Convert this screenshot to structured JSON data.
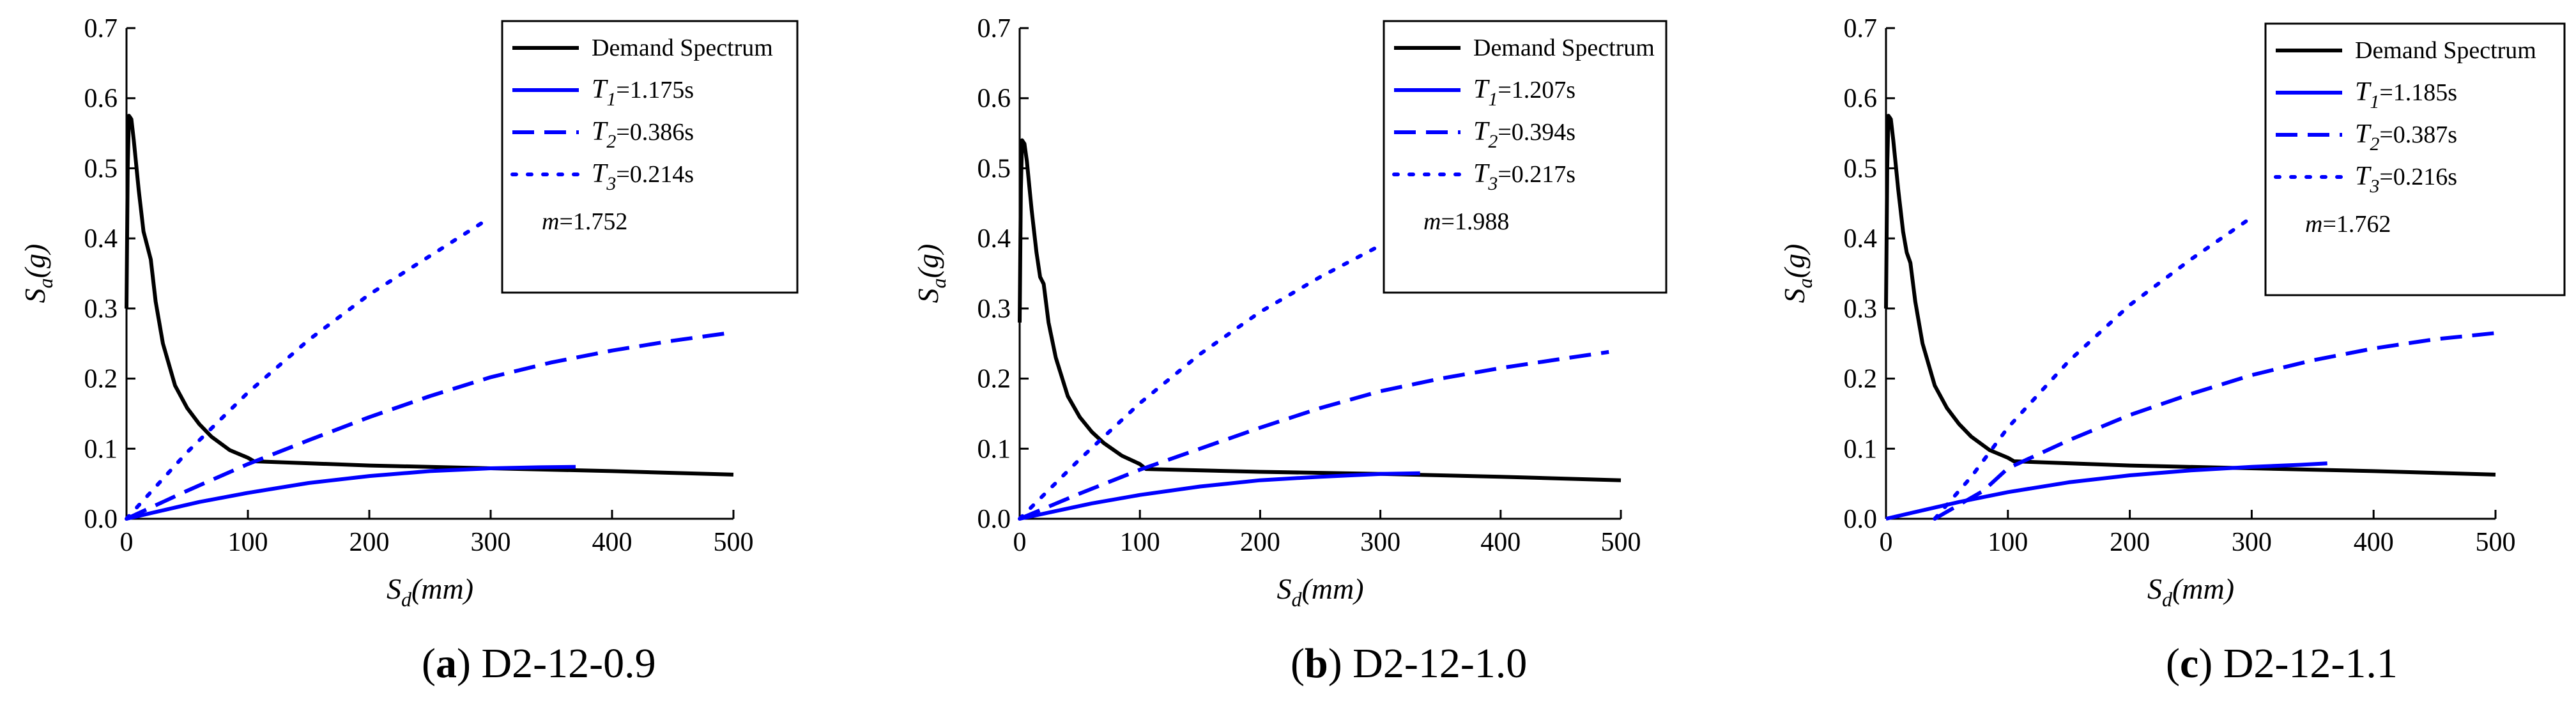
{
  "chart_data": [
    {
      "type": "line",
      "panel_label": "a",
      "caption": "D2-12-0.9",
      "xlabel_main": "S",
      "xlabel_sub": "d",
      "xlabel_unit": "(mm)",
      "ylabel_main": "S",
      "ylabel_sub": "a",
      "ylabel_unit": "(g)",
      "xlim": [
        0,
        500
      ],
      "ylim": [
        0,
        0.7
      ],
      "xticks": [
        "0",
        "100",
        "200",
        "300",
        "400",
        "500"
      ],
      "yticks": [
        "0.0",
        "0.1",
        "0.2",
        "0.3",
        "0.4",
        "0.5",
        "0.6",
        "0.7"
      ],
      "legend_position": "top-right",
      "legend": [
        {
          "label": "Demand Spectrum"
        },
        {
          "label_main": "T",
          "label_sub": "1",
          "label_value": "=1.175s"
        },
        {
          "label_main": "T",
          "label_sub": "2",
          "label_value": "=0.386s"
        },
        {
          "label_main": "T",
          "label_sub": "3",
          "label_value": "=0.214s"
        }
      ],
      "annotation": {
        "main": "m",
        "value": "=1.752"
      },
      "series": [
        {
          "name": "Demand Spectrum",
          "style": "solid",
          "color": "#000000",
          "points": [
            [
              0,
              0.3
            ],
            [
              1,
              0.5
            ],
            [
              2,
              0.575
            ],
            [
              4,
              0.57
            ],
            [
              6,
              0.54
            ],
            [
              10,
              0.47
            ],
            [
              14,
              0.41
            ],
            [
              17,
              0.39
            ],
            [
              20,
              0.37
            ],
            [
              24,
              0.31
            ],
            [
              30,
              0.25
            ],
            [
              40,
              0.19
            ],
            [
              50,
              0.158
            ],
            [
              60,
              0.135
            ],
            [
              70,
              0.117
            ],
            [
              85,
              0.098
            ],
            [
              100,
              0.087
            ],
            [
              105,
              0.082
            ],
            [
              200,
              0.076
            ],
            [
              300,
              0.072
            ],
            [
              400,
              0.068
            ],
            [
              500,
              0.063
            ]
          ]
        },
        {
          "name": "T1=1.175s",
          "style": "solid",
          "color": "#0000ff",
          "points": [
            [
              0,
              0.0
            ],
            [
              30,
              0.012
            ],
            [
              60,
              0.024
            ],
            [
              100,
              0.037
            ],
            [
              150,
              0.051
            ],
            [
              200,
              0.061
            ],
            [
              250,
              0.068
            ],
            [
              300,
              0.072
            ],
            [
              340,
              0.0735
            ],
            [
              370,
              0.074
            ]
          ]
        },
        {
          "name": "T2=0.386s",
          "style": "dashed",
          "color": "#0000ff",
          "points": [
            [
              0,
              0.0
            ],
            [
              50,
              0.04
            ],
            [
              100,
              0.078
            ],
            [
              150,
              0.112
            ],
            [
              200,
              0.145
            ],
            [
              250,
              0.175
            ],
            [
              300,
              0.202
            ],
            [
              350,
              0.223
            ],
            [
              400,
              0.24
            ],
            [
              450,
              0.254
            ],
            [
              500,
              0.266
            ]
          ]
        },
        {
          "name": "T3=0.214s",
          "style": "dotted",
          "color": "#0000ff",
          "points": [
            [
              0,
              0.0
            ],
            [
              50,
              0.095
            ],
            [
              100,
              0.18
            ],
            [
              150,
              0.255
            ],
            [
              200,
              0.32
            ],
            [
              250,
              0.375
            ],
            [
              300,
              0.43
            ]
          ]
        }
      ]
    },
    {
      "type": "line",
      "panel_label": "b",
      "caption": "D2-12-1.0",
      "xlabel_main": "S",
      "xlabel_sub": "d",
      "xlabel_unit": "(mm)",
      "ylabel_main": "S",
      "ylabel_sub": "a",
      "ylabel_unit": "(g)",
      "xlim": [
        0,
        500
      ],
      "ylim": [
        0,
        0.7
      ],
      "xticks": [
        "0",
        "100",
        "200",
        "300",
        "400",
        "500"
      ],
      "yticks": [
        "0.0",
        "0.1",
        "0.2",
        "0.3",
        "0.4",
        "0.5",
        "0.6",
        "0.7"
      ],
      "legend_position": "top-right",
      "legend": [
        {
          "label": "Demand Spectrum"
        },
        {
          "label_main": "T",
          "label_sub": "1",
          "label_value": "=1.207s"
        },
        {
          "label_main": "T",
          "label_sub": "2",
          "label_value": "=0.394s"
        },
        {
          "label_main": "T",
          "label_sub": "3",
          "label_value": "=0.217s"
        }
      ],
      "annotation": {
        "main": "m",
        "value": "=1.988"
      },
      "series": [
        {
          "name": "Demand Spectrum",
          "style": "solid",
          "color": "#000000",
          "points": [
            [
              0,
              0.28
            ],
            [
              1,
              0.47
            ],
            [
              2,
              0.54
            ],
            [
              4,
              0.535
            ],
            [
              6,
              0.51
            ],
            [
              10,
              0.44
            ],
            [
              14,
              0.38
            ],
            [
              17,
              0.345
            ],
            [
              20,
              0.335
            ],
            [
              24,
              0.28
            ],
            [
              30,
              0.23
            ],
            [
              40,
              0.175
            ],
            [
              50,
              0.145
            ],
            [
              60,
              0.124
            ],
            [
              70,
              0.108
            ],
            [
              85,
              0.09
            ],
            [
              100,
              0.078
            ],
            [
              105,
              0.071
            ],
            [
              200,
              0.067
            ],
            [
              300,
              0.064
            ],
            [
              400,
              0.06
            ],
            [
              500,
              0.055
            ]
          ]
        },
        {
          "name": "T1=1.207s",
          "style": "solid",
          "color": "#0000ff",
          "points": [
            [
              0,
              0.0
            ],
            [
              30,
              0.011
            ],
            [
              60,
              0.022
            ],
            [
              100,
              0.034
            ],
            [
              150,
              0.046
            ],
            [
              200,
              0.055
            ],
            [
              250,
              0.06
            ],
            [
              300,
              0.064
            ],
            [
              333,
              0.065
            ]
          ]
        },
        {
          "name": "T2=0.394s",
          "style": "dashed",
          "color": "#0000ff",
          "points": [
            [
              0,
              0.0
            ],
            [
              50,
              0.036
            ],
            [
              100,
              0.07
            ],
            [
              150,
              0.1
            ],
            [
              200,
              0.13
            ],
            [
              250,
              0.158
            ],
            [
              300,
              0.182
            ],
            [
              350,
              0.2
            ],
            [
              400,
              0.215
            ],
            [
              450,
              0.228
            ],
            [
              490,
              0.238
            ]
          ]
        },
        {
          "name": "T3=0.217s",
          "style": "dotted",
          "color": "#0000ff",
          "points": [
            [
              0,
              0.0
            ],
            [
              50,
              0.085
            ],
            [
              100,
              0.165
            ],
            [
              150,
              0.235
            ],
            [
              200,
              0.295
            ],
            [
              250,
              0.345
            ],
            [
              300,
              0.39
            ]
          ]
        }
      ]
    },
    {
      "type": "line",
      "panel_label": "c",
      "caption": "D2-12-1.1",
      "xlabel_main": "S",
      "xlabel_sub": "d",
      "xlabel_unit": "(mm)",
      "ylabel_main": "S",
      "ylabel_sub": "a",
      "ylabel_unit": "(g)",
      "xlim": [
        0,
        500
      ],
      "ylim": [
        0,
        0.7
      ],
      "xticks": [
        "0",
        "100",
        "200",
        "300",
        "400",
        "500"
      ],
      "yticks": [
        "0.0",
        "0.1",
        "0.2",
        "0.3",
        "0.4",
        "0.5",
        "0.6",
        "0.7"
      ],
      "legend_position": "top-right",
      "legend": [
        {
          "label": "Demand Spectrum"
        },
        {
          "label_main": "T",
          "label_sub": "1",
          "label_value": "=1.185s"
        },
        {
          "label_main": "T",
          "label_sub": "2",
          "label_value": "=0.387s"
        },
        {
          "label_main": "T",
          "label_sub": "3",
          "label_value": "=0.216s"
        }
      ],
      "annotation": {
        "main": "m",
        "value": "=1.762"
      },
      "series": [
        {
          "name": "Demand Spectrum",
          "style": "solid",
          "color": "#000000",
          "points": [
            [
              0,
              0.3
            ],
            [
              1,
              0.5
            ],
            [
              2,
              0.575
            ],
            [
              4,
              0.57
            ],
            [
              6,
              0.54
            ],
            [
              10,
              0.47
            ],
            [
              14,
              0.41
            ],
            [
              17,
              0.38
            ],
            [
              20,
              0.365
            ],
            [
              24,
              0.31
            ],
            [
              30,
              0.25
            ],
            [
              40,
              0.19
            ],
            [
              50,
              0.158
            ],
            [
              60,
              0.135
            ],
            [
              70,
              0.117
            ],
            [
              85,
              0.098
            ],
            [
              100,
              0.087
            ],
            [
              105,
              0.082
            ],
            [
              200,
              0.076
            ],
            [
              300,
              0.072
            ],
            [
              400,
              0.068
            ],
            [
              500,
              0.063
            ]
          ]
        },
        {
          "name": "T1=1.185s",
          "style": "solid",
          "color": "#0000ff",
          "points": [
            [
              0,
              0.0
            ],
            [
              30,
              0.012
            ],
            [
              60,
              0.024
            ],
            [
              100,
              0.038
            ],
            [
              150,
              0.052
            ],
            [
              200,
              0.062
            ],
            [
              250,
              0.069
            ],
            [
              300,
              0.074
            ],
            [
              340,
              0.077
            ],
            [
              362,
              0.079
            ]
          ]
        },
        {
          "name": "T2=0.387s",
          "style": "dashed",
          "color": "#0000ff",
          "points": [
            [
              40,
              0.0
            ],
            [
              80,
              0.04
            ],
            [
              100,
              0.072
            ],
            [
              150,
              0.112
            ],
            [
              200,
              0.148
            ],
            [
              250,
              0.178
            ],
            [
              300,
              0.205
            ],
            [
              350,
              0.226
            ],
            [
              400,
              0.243
            ],
            [
              450,
              0.256
            ],
            [
              500,
              0.265
            ]
          ]
        },
        {
          "name": "T3=0.216s",
          "style": "dotted",
          "color": "#0000ff",
          "points": [
            [
              40,
              0.0
            ],
            [
              70,
              0.06
            ],
            [
              100,
              0.13
            ],
            [
              150,
              0.225
            ],
            [
              200,
              0.305
            ],
            [
              250,
              0.37
            ],
            [
              300,
              0.43
            ]
          ]
        }
      ]
    }
  ]
}
